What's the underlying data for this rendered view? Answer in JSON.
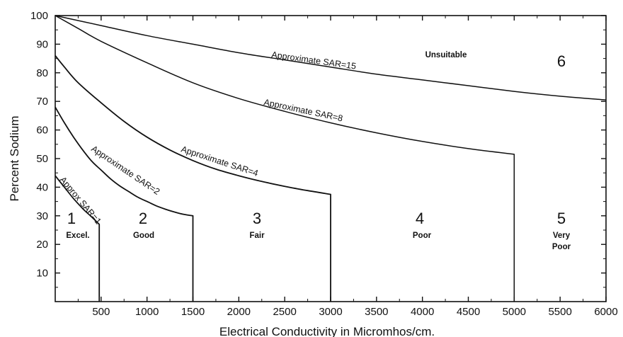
{
  "chart_data": {
    "type": "line",
    "xlabel": "Electrical Conductivity in Micromhos/cm.",
    "ylabel": "Percent Sodium",
    "xlim": [
      0,
      6000
    ],
    "ylim": [
      0,
      100
    ],
    "xticks": [
      500,
      1000,
      1500,
      2000,
      2500,
      3000,
      3500,
      4000,
      4500,
      5000,
      5500,
      6000
    ],
    "yticks": [
      10,
      20,
      30,
      40,
      50,
      60,
      70,
      80,
      90,
      100
    ],
    "grid": false,
    "series": [
      {
        "name": "Approx SAR=1",
        "points": [
          [
            0,
            44
          ],
          [
            100,
            40
          ],
          [
            200,
            36
          ],
          [
            300,
            32.5
          ],
          [
            400,
            29.5
          ],
          [
            480,
            27
          ]
        ],
        "drop_to_axis_at": 480
      },
      {
        "name": "Approximate SAR=2",
        "points": [
          [
            0,
            68
          ],
          [
            100,
            62.5
          ],
          [
            200,
            57.5
          ],
          [
            300,
            53
          ],
          [
            400,
            49
          ],
          [
            500,
            46
          ],
          [
            600,
            43
          ],
          [
            700,
            40.5
          ],
          [
            800,
            38.5
          ],
          [
            900,
            36.5
          ],
          [
            1000,
            35
          ],
          [
            1100,
            33.5
          ],
          [
            1200,
            32.3
          ],
          [
            1300,
            31.3
          ],
          [
            1400,
            30.5
          ],
          [
            1500,
            30
          ]
        ],
        "drop_to_axis_at": 1500
      },
      {
        "name": "Approximate SAR=4",
        "points": [
          [
            0,
            86
          ],
          [
            100,
            82
          ],
          [
            250,
            76.5
          ],
          [
            500,
            69.5
          ],
          [
            750,
            63
          ],
          [
            1000,
            57.5
          ],
          [
            1250,
            53
          ],
          [
            1500,
            49.3
          ],
          [
            1750,
            46.3
          ],
          [
            2000,
            44
          ],
          [
            2250,
            42
          ],
          [
            2500,
            40.3
          ],
          [
            2750,
            38.8
          ],
          [
            3000,
            37.5
          ]
        ],
        "drop_to_axis_at": 3000
      },
      {
        "name": "Approximate SAR=8",
        "points": [
          [
            0,
            100
          ],
          [
            250,
            95.5
          ],
          [
            500,
            91
          ],
          [
            1000,
            83.5
          ],
          [
            1500,
            76.5
          ],
          [
            2000,
            71
          ],
          [
            2500,
            66.5
          ],
          [
            3000,
            62.5
          ],
          [
            3500,
            59
          ],
          [
            4000,
            56
          ],
          [
            4500,
            53.5
          ],
          [
            5000,
            51.5
          ]
        ],
        "drop_to_axis_at": 5000
      },
      {
        "name": "Approximate SAR=15",
        "points": [
          [
            0,
            100
          ],
          [
            500,
            96.5
          ],
          [
            1000,
            93
          ],
          [
            1500,
            90
          ],
          [
            2000,
            87
          ],
          [
            2500,
            84.5
          ],
          [
            3000,
            82
          ],
          [
            3500,
            79.5
          ],
          [
            4000,
            77.5
          ],
          [
            4500,
            75.5
          ],
          [
            5000,
            73.5
          ],
          [
            5500,
            71.8
          ],
          [
            6000,
            70.5
          ]
        ]
      }
    ],
    "curve_labels": {
      "sar1": "Approx SAR=1",
      "sar2": "Approximate SAR=2",
      "sar4": "Approximate SAR=4",
      "sar8": "Approximate SAR=8",
      "sar15": "Approximate SAR=15"
    },
    "classes": [
      {
        "number": "1",
        "name": "Excel."
      },
      {
        "number": "2",
        "name": "Good"
      },
      {
        "number": "3",
        "name": "Fair"
      },
      {
        "number": "4",
        "name": "Poor"
      },
      {
        "number": "5",
        "name_lines": [
          "Very",
          "Poor"
        ]
      },
      {
        "number": "6",
        "name": "Unsuitable"
      }
    ]
  }
}
